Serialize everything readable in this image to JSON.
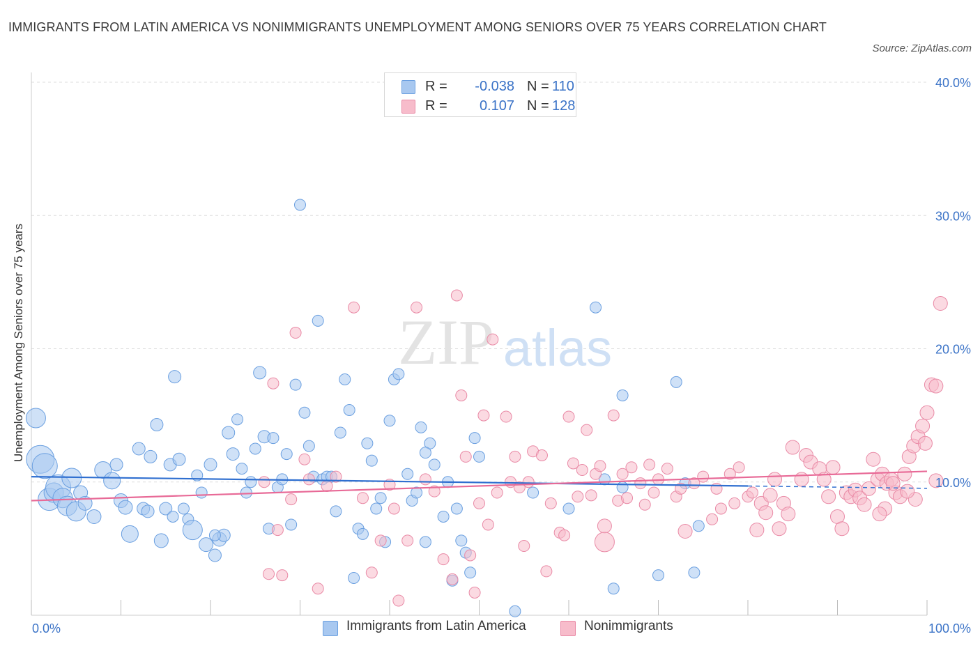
{
  "title": "IMMIGRANTS FROM LATIN AMERICA VS NONIMMIGRANTS UNEMPLOYMENT AMONG SENIORS OVER 75 YEARS CORRELATION CHART",
  "source": "Source: ZipAtlas.com",
  "watermark": {
    "zip": "ZIP",
    "atlas": "atlas"
  },
  "stats_legend": {
    "rows": [
      {
        "r_label": "R =",
        "r_value": "-0.038",
        "n_label": "N =",
        "n_value": "110",
        "color": "#a8c8f0",
        "border": "#6a9fe0"
      },
      {
        "r_label": "R =",
        "r_value": "0.107",
        "n_label": "N =",
        "n_value": "128",
        "color": "#f7bccb",
        "border": "#e98aa6"
      }
    ]
  },
  "bottom_legend": [
    {
      "label": "Immigrants from Latin America",
      "color": "#a8c8f0",
      "border": "#6a9fe0"
    },
    {
      "label": "Nonimmigrants",
      "color": "#f7bccb",
      "border": "#e98aa6"
    }
  ],
  "chart_data": {
    "type": "scatter",
    "title": "IMMIGRANTS FROM LATIN AMERICA VS NONIMMIGRANTS UNEMPLOYMENT AMONG SENIORS OVER 75 YEARS CORRELATION CHART",
    "xlabel": "",
    "ylabel": "Unemployment Among Seniors over 75 years",
    "xlim": [
      0,
      100
    ],
    "ylim": [
      0,
      40
    ],
    "x_tick_labels": [
      "0.0%",
      "100.0%"
    ],
    "y_ticks": [
      10,
      20,
      30,
      40
    ],
    "y_tick_labels": [
      "10.0%",
      "20.0%",
      "30.0%",
      "40.0%"
    ],
    "grid": "horizontal dashed",
    "series": [
      {
        "name": "Immigrants from Latin America",
        "color": "#7aaae8",
        "trend": {
          "x": [
            0,
            80
          ],
          "y": [
            10.4,
            9.7
          ],
          "dashed_extension_to": 100,
          "color": "#2f6fd0"
        },
        "points": [
          [
            0.5,
            14.8,
            14
          ],
          [
            1,
            11.7,
            20
          ],
          [
            1.5,
            11.2,
            18
          ],
          [
            2,
            8.7,
            16
          ],
          [
            2.5,
            9.2,
            14
          ],
          [
            3,
            9.6,
            18
          ],
          [
            3.5,
            8.8,
            14
          ],
          [
            4,
            8.2,
            14
          ],
          [
            4.5,
            10.3,
            14
          ],
          [
            5,
            7.8,
            14
          ],
          [
            5.5,
            9.2,
            10
          ],
          [
            6,
            8.4,
            10
          ],
          [
            7,
            7.4,
            10
          ],
          [
            8,
            10.9,
            12
          ],
          [
            9,
            10.1,
            12
          ],
          [
            9.5,
            11.3,
            9
          ],
          [
            10,
            8.6,
            10
          ],
          [
            10.5,
            8.1,
            10
          ],
          [
            11,
            6.1,
            12
          ],
          [
            12,
            12.5,
            9
          ],
          [
            12.5,
            8.0,
            9
          ],
          [
            13,
            7.8,
            9
          ],
          [
            13.3,
            11.9,
            9
          ],
          [
            14,
            14.3,
            9
          ],
          [
            14.5,
            5.6,
            10
          ],
          [
            15,
            8.0,
            9
          ],
          [
            15.5,
            11.3,
            9
          ],
          [
            15.8,
            7.4,
            8
          ],
          [
            16,
            17.9,
            9
          ],
          [
            16.5,
            11.7,
            9
          ],
          [
            17,
            8.0,
            8
          ],
          [
            17.5,
            7.2,
            8
          ],
          [
            18,
            6.4,
            14
          ],
          [
            18.5,
            10.5,
            8
          ],
          [
            19,
            9.2,
            8
          ],
          [
            19.5,
            5.3,
            10
          ],
          [
            20,
            11.3,
            9
          ],
          [
            20.5,
            4.5,
            9
          ],
          [
            21,
            5.7,
            10
          ],
          [
            21.5,
            6.0,
            9
          ],
          [
            22,
            13.7,
            9
          ],
          [
            22.5,
            12.1,
            9
          ],
          [
            23,
            14.7,
            8
          ],
          [
            23.5,
            11.0,
            8
          ],
          [
            24,
            9.2,
            8
          ],
          [
            24.5,
            10.0,
            8
          ],
          [
            25,
            12.5,
            8
          ],
          [
            25.5,
            18.2,
            9
          ],
          [
            26,
            13.4,
            9
          ],
          [
            26.5,
            6.5,
            8
          ],
          [
            27,
            13.3,
            8
          ],
          [
            27.5,
            9.6,
            8
          ],
          [
            28,
            10.2,
            8
          ],
          [
            28.5,
            12.1,
            8
          ],
          [
            29,
            6.8,
            8
          ],
          [
            29.5,
            17.3,
            8
          ],
          [
            30,
            30.8,
            8
          ],
          [
            30.5,
            15.2,
            8
          ],
          [
            31,
            12.7,
            8
          ],
          [
            31.5,
            10.4,
            8
          ],
          [
            32,
            22.1,
            8
          ],
          [
            32.5,
            10.2,
            8
          ],
          [
            33,
            10.4,
            8
          ],
          [
            33.5,
            10.4,
            8
          ],
          [
            34,
            7.8,
            8
          ],
          [
            34.5,
            13.7,
            8
          ],
          [
            35,
            17.7,
            8
          ],
          [
            35.5,
            15.4,
            8
          ],
          [
            36,
            2.8,
            8
          ],
          [
            36.5,
            6.5,
            8
          ],
          [
            37,
            6.1,
            8
          ],
          [
            37.5,
            12.9,
            8
          ],
          [
            38,
            11.6,
            8
          ],
          [
            38.5,
            8.0,
            8
          ],
          [
            39,
            8.8,
            8
          ],
          [
            39.5,
            5.5,
            8
          ],
          [
            40,
            14.6,
            8
          ],
          [
            40.5,
            17.7,
            8
          ],
          [
            41,
            18.1,
            8
          ],
          [
            42,
            10.6,
            8
          ],
          [
            42.5,
            8.6,
            8
          ],
          [
            43,
            9.2,
            8
          ],
          [
            43.5,
            14.1,
            8
          ],
          [
            44,
            5.5,
            8
          ],
          [
            44.5,
            12.9,
            8
          ],
          [
            45,
            11.3,
            8
          ],
          [
            46,
            7.4,
            8
          ],
          [
            46.5,
            10.0,
            8
          ],
          [
            47,
            2.6,
            8
          ],
          [
            47.5,
            8.0,
            8
          ],
          [
            48,
            5.6,
            8
          ],
          [
            48.5,
            4.7,
            8
          ],
          [
            49,
            3.2,
            8
          ],
          [
            49.5,
            13.3,
            8
          ],
          [
            50,
            11.9,
            8
          ],
          [
            54,
            0.3,
            8
          ],
          [
            63,
            23.1,
            8
          ],
          [
            64,
            10.2,
            8
          ],
          [
            65,
            2.0,
            8
          ],
          [
            66,
            9.6,
            8
          ],
          [
            66,
            16.5,
            8
          ],
          [
            70,
            3.0,
            8
          ],
          [
            72,
            17.5,
            8
          ],
          [
            73,
            9.9,
            8
          ],
          [
            74,
            3.2,
            8
          ],
          [
            74.5,
            6.7,
            8
          ],
          [
            20.5,
            6.0,
            8
          ],
          [
            56,
            9.2,
            8
          ],
          [
            60,
            8.0,
            8
          ],
          [
            44,
            12.2,
            8
          ]
        ]
      },
      {
        "name": "Nonimmigrants",
        "color": "#f29bb3",
        "trend": {
          "x": [
            0,
            100
          ],
          "y": [
            8.6,
            10.8
          ],
          "color": "#e86a97"
        },
        "points": [
          [
            26,
            10.0,
            8
          ],
          [
            26.5,
            3.1,
            8
          ],
          [
            27,
            17.4,
            8
          ],
          [
            27.5,
            6.4,
            8
          ],
          [
            28,
            3.0,
            8
          ],
          [
            29,
            8.7,
            8
          ],
          [
            29.5,
            21.2,
            8
          ],
          [
            30.5,
            11.7,
            8
          ],
          [
            31,
            10.2,
            8
          ],
          [
            32,
            2.0,
            8
          ],
          [
            33,
            9.7,
            8
          ],
          [
            34,
            10.4,
            8
          ],
          [
            36,
            23.1,
            8
          ],
          [
            37,
            8.8,
            8
          ],
          [
            38,
            3.2,
            8
          ],
          [
            39,
            5.6,
            8
          ],
          [
            40,
            9.8,
            8
          ],
          [
            40.5,
            8.0,
            8
          ],
          [
            41,
            1.1,
            8
          ],
          [
            42,
            5.6,
            8
          ],
          [
            43,
            23.1,
            8
          ],
          [
            44,
            10.2,
            8
          ],
          [
            45,
            9.3,
            8
          ],
          [
            46,
            4.2,
            8
          ],
          [
            47,
            2.7,
            8
          ],
          [
            47.5,
            24.0,
            8
          ],
          [
            48,
            16.5,
            8
          ],
          [
            48.5,
            11.9,
            8
          ],
          [
            49,
            4.5,
            8
          ],
          [
            49.5,
            1.7,
            8
          ],
          [
            50,
            8.4,
            8
          ],
          [
            50.5,
            15.0,
            8
          ],
          [
            51,
            6.8,
            8
          ],
          [
            51.5,
            20.7,
            8
          ],
          [
            52,
            9.2,
            8
          ],
          [
            53,
            14.9,
            8
          ],
          [
            53.5,
            10.0,
            8
          ],
          [
            54,
            11.9,
            8
          ],
          [
            54.5,
            9.6,
            8
          ],
          [
            55,
            5.2,
            8
          ],
          [
            55.5,
            10.0,
            8
          ],
          [
            56,
            12.3,
            8
          ],
          [
            57,
            12.0,
            8
          ],
          [
            57.5,
            3.3,
            8
          ],
          [
            58,
            8.4,
            8
          ],
          [
            59,
            6.2,
            8
          ],
          [
            59.5,
            6.0,
            8
          ],
          [
            60,
            14.9,
            8
          ],
          [
            60.5,
            11.4,
            8
          ],
          [
            61,
            8.9,
            8
          ],
          [
            61.5,
            10.9,
            8
          ],
          [
            62,
            13.9,
            8
          ],
          [
            62.5,
            9.0,
            8
          ],
          [
            63,
            10.6,
            8
          ],
          [
            63.5,
            11.2,
            8
          ],
          [
            64,
            6.7,
            10
          ],
          [
            64,
            5.5,
            14
          ],
          [
            65,
            15.0,
            8
          ],
          [
            65.5,
            8.6,
            8
          ],
          [
            66,
            10.6,
            8
          ],
          [
            66.5,
            8.8,
            8
          ],
          [
            67,
            11.1,
            8
          ],
          [
            68,
            9.9,
            8
          ],
          [
            68.5,
            8.3,
            8
          ],
          [
            69,
            11.3,
            8
          ],
          [
            69.5,
            9.2,
            8
          ],
          [
            70,
            10.2,
            8
          ],
          [
            71,
            11.0,
            8
          ],
          [
            72,
            8.9,
            8
          ],
          [
            72.5,
            9.5,
            8
          ],
          [
            73,
            6.3,
            10
          ],
          [
            74,
            9.9,
            8
          ],
          [
            75,
            10.4,
            8
          ],
          [
            76,
            7.2,
            8
          ],
          [
            76.5,
            9.5,
            8
          ],
          [
            77,
            8.0,
            8
          ],
          [
            78,
            10.6,
            8
          ],
          [
            78.5,
            8.4,
            8
          ],
          [
            79,
            11.1,
            8
          ],
          [
            80,
            8.9,
            8
          ],
          [
            80.5,
            9.2,
            8
          ],
          [
            81,
            6.4,
            10
          ],
          [
            81.5,
            8.4,
            10
          ],
          [
            82,
            7.7,
            10
          ],
          [
            82.5,
            9.0,
            10
          ],
          [
            83,
            10.2,
            10
          ],
          [
            83.5,
            6.5,
            10
          ],
          [
            84,
            8.4,
            10
          ],
          [
            84.5,
            7.6,
            10
          ],
          [
            85,
            12.6,
            10
          ],
          [
            86,
            10.2,
            10
          ],
          [
            86.5,
            12.0,
            10
          ],
          [
            87,
            11.5,
            10
          ],
          [
            88,
            11.0,
            10
          ],
          [
            88.5,
            10.2,
            10
          ],
          [
            89,
            8.9,
            10
          ],
          [
            89.5,
            11.1,
            10
          ],
          [
            90,
            7.4,
            10
          ],
          [
            90.5,
            6.5,
            10
          ],
          [
            91,
            9.2,
            10
          ],
          [
            91.5,
            8.9,
            10
          ],
          [
            92,
            9.4,
            10
          ],
          [
            92.5,
            8.8,
            10
          ],
          [
            93,
            8.3,
            10
          ],
          [
            93.5,
            9.5,
            10
          ],
          [
            94,
            11.7,
            10
          ],
          [
            94.5,
            10.2,
            10
          ],
          [
            95,
            10.6,
            10
          ],
          [
            95.5,
            9.9,
            10
          ],
          [
            96,
            10.2,
            10
          ],
          [
            96.5,
            9.2,
            10
          ],
          [
            97,
            8.9,
            10
          ],
          [
            97.5,
            10.6,
            10
          ],
          [
            98,
            11.9,
            10
          ],
          [
            98.5,
            12.7,
            10
          ],
          [
            99,
            13.4,
            10
          ],
          [
            99.5,
            14.2,
            10
          ],
          [
            100,
            15.2,
            10
          ],
          [
            100.5,
            17.3,
            10
          ],
          [
            101,
            17.2,
            10
          ],
          [
            101.5,
            23.4,
            10
          ],
          [
            99.8,
            12.9,
            10
          ],
          [
            101,
            10.1,
            10
          ],
          [
            98.7,
            8.7,
            10
          ],
          [
            97.8,
            9.3,
            10
          ],
          [
            96.2,
            9.9,
            10
          ],
          [
            95.3,
            8.0,
            10
          ],
          [
            94.7,
            7.6,
            10
          ]
        ]
      }
    ]
  }
}
